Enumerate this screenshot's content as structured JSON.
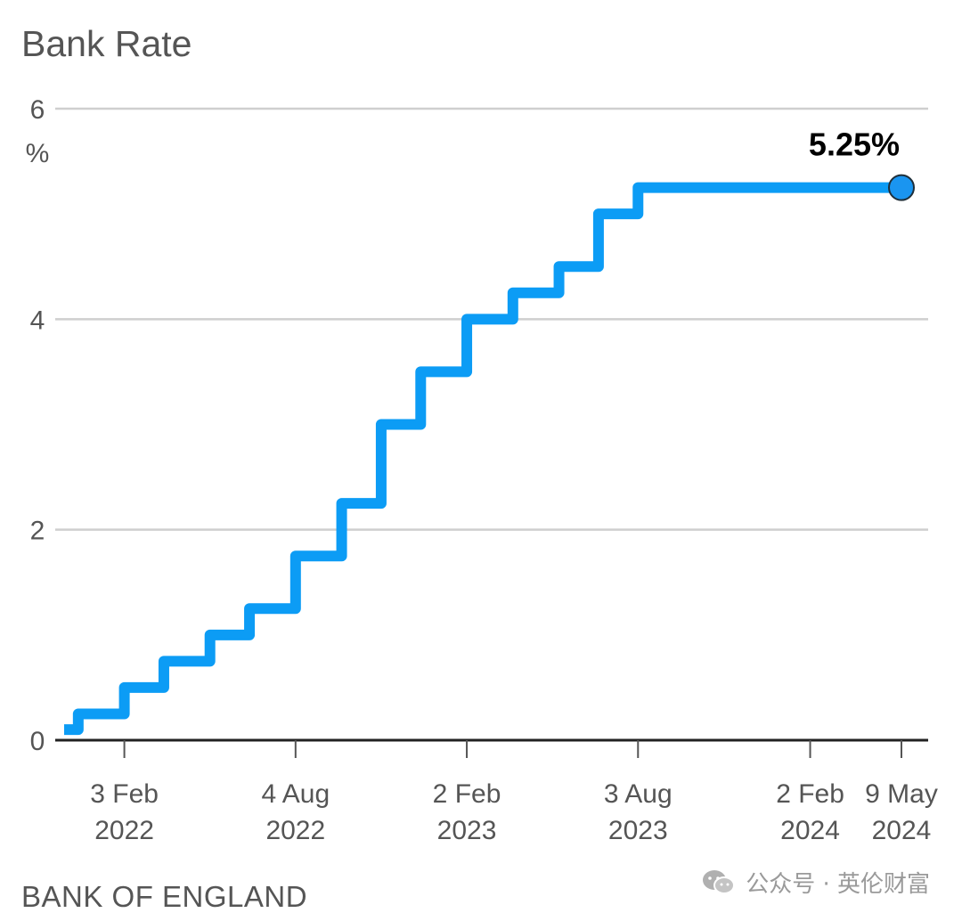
{
  "watermark": {
    "text": "公众号 · 英伦财富"
  },
  "chart_data": {
    "type": "line",
    "step": true,
    "title": "Bank Rate",
    "source": "BANK OF ENGLAND",
    "ylabel": "%",
    "ylim": [
      0,
      6
    ],
    "yticks": [
      0,
      2,
      4,
      6
    ],
    "xlim": [
      "2021-12-01",
      "2024-05-09"
    ],
    "xticks": [
      {
        "date": "2022-02-03",
        "line1": "3 Feb",
        "line2": "2022"
      },
      {
        "date": "2022-08-04",
        "line1": "4 Aug",
        "line2": "2022"
      },
      {
        "date": "2023-02-02",
        "line1": "2 Feb",
        "line2": "2023"
      },
      {
        "date": "2023-08-03",
        "line1": "3 Aug",
        "line2": "2023"
      },
      {
        "date": "2024-02-02",
        "line1": "2 Feb",
        "line2": "2024"
      },
      {
        "date": "2024-05-09",
        "line1": "9 May",
        "line2": "2024"
      }
    ],
    "grid": true,
    "line_color": "#0c9cf5",
    "marker_color": "#1a95f0",
    "series": [
      {
        "points": [
          {
            "date": "2021-12-01",
            "value": 0.1
          },
          {
            "date": "2021-12-16",
            "value": 0.25
          },
          {
            "date": "2022-02-03",
            "value": 0.5
          },
          {
            "date": "2022-03-17",
            "value": 0.75
          },
          {
            "date": "2022-05-05",
            "value": 1.0
          },
          {
            "date": "2022-06-16",
            "value": 1.25
          },
          {
            "date": "2022-08-04",
            "value": 1.75
          },
          {
            "date": "2022-09-22",
            "value": 2.25
          },
          {
            "date": "2022-11-03",
            "value": 3.0
          },
          {
            "date": "2022-12-15",
            "value": 3.5
          },
          {
            "date": "2023-02-02",
            "value": 4.0
          },
          {
            "date": "2023-03-23",
            "value": 4.25
          },
          {
            "date": "2023-05-11",
            "value": 4.5
          },
          {
            "date": "2023-06-22",
            "value": 5.0
          },
          {
            "date": "2023-08-03",
            "value": 5.25
          },
          {
            "date": "2024-05-09",
            "value": 5.25
          }
        ]
      }
    ],
    "annotation": {
      "date": "2024-05-09",
      "value": 5.25,
      "label": "5.25%"
    }
  }
}
